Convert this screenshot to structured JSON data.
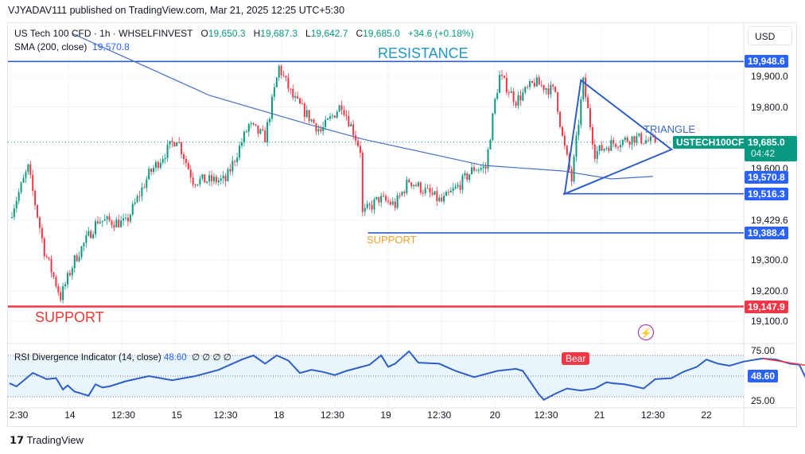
{
  "header": {
    "published": "VJYADAV111 published on TradingView.com, Mar 21, 2025 12:25 UTC+5:30",
    "symbol": "US Tech 100 CFD · 1h · WHSELFINVEST",
    "o_label": "O",
    "o": "19,650.3",
    "h_label": "H",
    "h": "19,687.3",
    "l_label": "L",
    "l": "19,642.7",
    "c_label": "C",
    "c": "19,685.0",
    "change": "+34.6 (+0.18%)",
    "sma_label": "SMA (200, close)",
    "sma_value": "19,570.8",
    "currency": "USD"
  },
  "annotations": {
    "resistance": "RESISTANCE",
    "support_main": "SUPPORT",
    "support_minor": "SUPPORT",
    "triangle": "TRIANGLE",
    "bear": "Bear",
    "symbol_tag": "USTECH100CFD",
    "countdown": "04:42"
  },
  "price_axis": {
    "ticks": [
      "19,900.0",
      "19,800.0",
      "19,600.0",
      "19,429.6",
      "19,300.0",
      "19,200.0",
      "19,100.0"
    ],
    "tick_values": [
      19900,
      19800,
      19600,
      19429.6,
      19300,
      19200,
      19100
    ],
    "tags": [
      {
        "label": "19,948.6",
        "value": 19948.6,
        "color": "#2962ff"
      },
      {
        "label": "19,685.0",
        "value": 19685.0,
        "color": "#089981"
      },
      {
        "label": "19,570.8",
        "value": 19570.8,
        "color": "#2962ff"
      },
      {
        "label": "19,516.3",
        "value": 19516.3,
        "color": "#2962ff"
      },
      {
        "label": "19,388.4",
        "value": 19388.4,
        "color": "#2962ff"
      },
      {
        "label": "19,147.9",
        "value": 19147.9,
        "color": "#f23645"
      }
    ]
  },
  "rsi": {
    "label": "RSI Divergence Indicator (14, close)",
    "value": "48.60",
    "extras": "∅ ∅ ∅ ∅",
    "ticks": [
      "75.00",
      "25.00"
    ],
    "anchors": [
      [
        0,
        43
      ],
      [
        3,
        40
      ],
      [
        10,
        53
      ],
      [
        16,
        47
      ],
      [
        20,
        48
      ],
      [
        23,
        37
      ],
      [
        25,
        41
      ],
      [
        28,
        35
      ],
      [
        34,
        31
      ],
      [
        37,
        42
      ],
      [
        40,
        39
      ],
      [
        43,
        40
      ],
      [
        50,
        45
      ],
      [
        60,
        50
      ],
      [
        70,
        46
      ],
      [
        80,
        50
      ],
      [
        90,
        56
      ],
      [
        100,
        66
      ],
      [
        105,
        70
      ],
      [
        110,
        62
      ],
      [
        115,
        70
      ],
      [
        120,
        65
      ],
      [
        125,
        53
      ],
      [
        130,
        56
      ],
      [
        135,
        54
      ],
      [
        140,
        51
      ],
      [
        145,
        55
      ],
      [
        150,
        58
      ],
      [
        155,
        61
      ],
      [
        160,
        70
      ],
      [
        163,
        59
      ],
      [
        166,
        62
      ],
      [
        172,
        74
      ],
      [
        176,
        63
      ],
      [
        185,
        62
      ],
      [
        192,
        55
      ],
      [
        200,
        49
      ],
      [
        210,
        55
      ],
      [
        218,
        57
      ],
      [
        221,
        55
      ],
      [
        228,
        32
      ],
      [
        230,
        27
      ],
      [
        235,
        33
      ],
      [
        240,
        38
      ],
      [
        246,
        36
      ],
      [
        252,
        38
      ],
      [
        257,
        44
      ],
      [
        260,
        43
      ],
      [
        265,
        42
      ],
      [
        273,
        38
      ],
      [
        278,
        47
      ],
      [
        285,
        48
      ],
      [
        290,
        54
      ],
      [
        296,
        59
      ],
      [
        300,
        66
      ],
      [
        305,
        62
      ],
      [
        310,
        60
      ],
      [
        316,
        64
      ],
      [
        324,
        67
      ],
      [
        330,
        66
      ],
      [
        336,
        62
      ],
      [
        340,
        61
      ],
      [
        345,
        38
      ],
      [
        350,
        44
      ],
      [
        355,
        55
      ],
      [
        358,
        51
      ],
      [
        361,
        46
      ],
      [
        366,
        40
      ],
      [
        372,
        44
      ],
      [
        380,
        45
      ],
      [
        386,
        48
      ],
      [
        390,
        43
      ],
      [
        395,
        41
      ],
      [
        398,
        45
      ]
    ],
    "bear_divergence": [
      [
        324,
        67
      ],
      [
        350,
        58
      ]
    ]
  },
  "time_axis": {
    "labels": [
      "2:30",
      "14",
      "12:30",
      "15",
      "12:30",
      "18",
      "12:30",
      "19",
      "12:30",
      "20",
      "12:30",
      "21",
      "12:30",
      "22"
    ],
    "bars": [
      4,
      26,
      49,
      72,
      93,
      116,
      139,
      162,
      185,
      209,
      231,
      254,
      277,
      300
    ]
  },
  "chart_data": {
    "type": "candlestick",
    "symbol": "USTECH100CFD",
    "timeframe": "1h",
    "ylim": [
      19060,
      20010
    ],
    "bar_count": 278,
    "close_anchors": [
      [
        0,
        19440
      ],
      [
        8,
        19600
      ],
      [
        15,
        19330
      ],
      [
        22,
        19180
      ],
      [
        28,
        19300
      ],
      [
        38,
        19430
      ],
      [
        50,
        19420
      ],
      [
        60,
        19580
      ],
      [
        72,
        19700
      ],
      [
        79,
        19560
      ],
      [
        93,
        19560
      ],
      [
        103,
        19740
      ],
      [
        110,
        19700
      ],
      [
        116,
        19930
      ],
      [
        122,
        19830
      ],
      [
        134,
        19720
      ],
      [
        143,
        19810
      ],
      [
        148,
        19720
      ],
      [
        151,
        19660
      ],
      [
        152,
        19450
      ],
      [
        159,
        19500
      ],
      [
        166,
        19480
      ],
      [
        172,
        19560
      ],
      [
        186,
        19490
      ],
      [
        193,
        19540
      ],
      [
        200,
        19600
      ],
      [
        205,
        19600
      ],
      [
        209,
        19820
      ],
      [
        211,
        19900
      ],
      [
        218,
        19820
      ],
      [
        226,
        19880
      ],
      [
        235,
        19850
      ],
      [
        238,
        19700
      ],
      [
        242,
        19560
      ],
      [
        247,
        19880
      ],
      [
        252,
        19650
      ],
      [
        259,
        19680
      ],
      [
        269,
        19700
      ],
      [
        277,
        19685
      ]
    ],
    "sma_200": [
      [
        27,
        20040
      ],
      [
        86,
        19838
      ],
      [
        127,
        19747
      ],
      [
        152,
        19695
      ],
      [
        204,
        19609
      ],
      [
        238,
        19591
      ],
      [
        259,
        19565
      ],
      [
        277,
        19573
      ]
    ],
    "levels": [
      {
        "name": "resistance",
        "value": 19948.6,
        "from_bar": 0
      },
      {
        "name": "support",
        "value": 19147.9,
        "from_bar": 0
      },
      {
        "name": "minor-support",
        "value": 19388.4,
        "from_bar": 155
      },
      {
        "name": "triangle-base",
        "value": 19516.3,
        "from_bar": 239
      }
    ],
    "triangle": [
      [
        239,
        19516
      ],
      [
        246,
        19887
      ],
      [
        285,
        19661
      ]
    ],
    "last_price": 19685.0
  }
}
